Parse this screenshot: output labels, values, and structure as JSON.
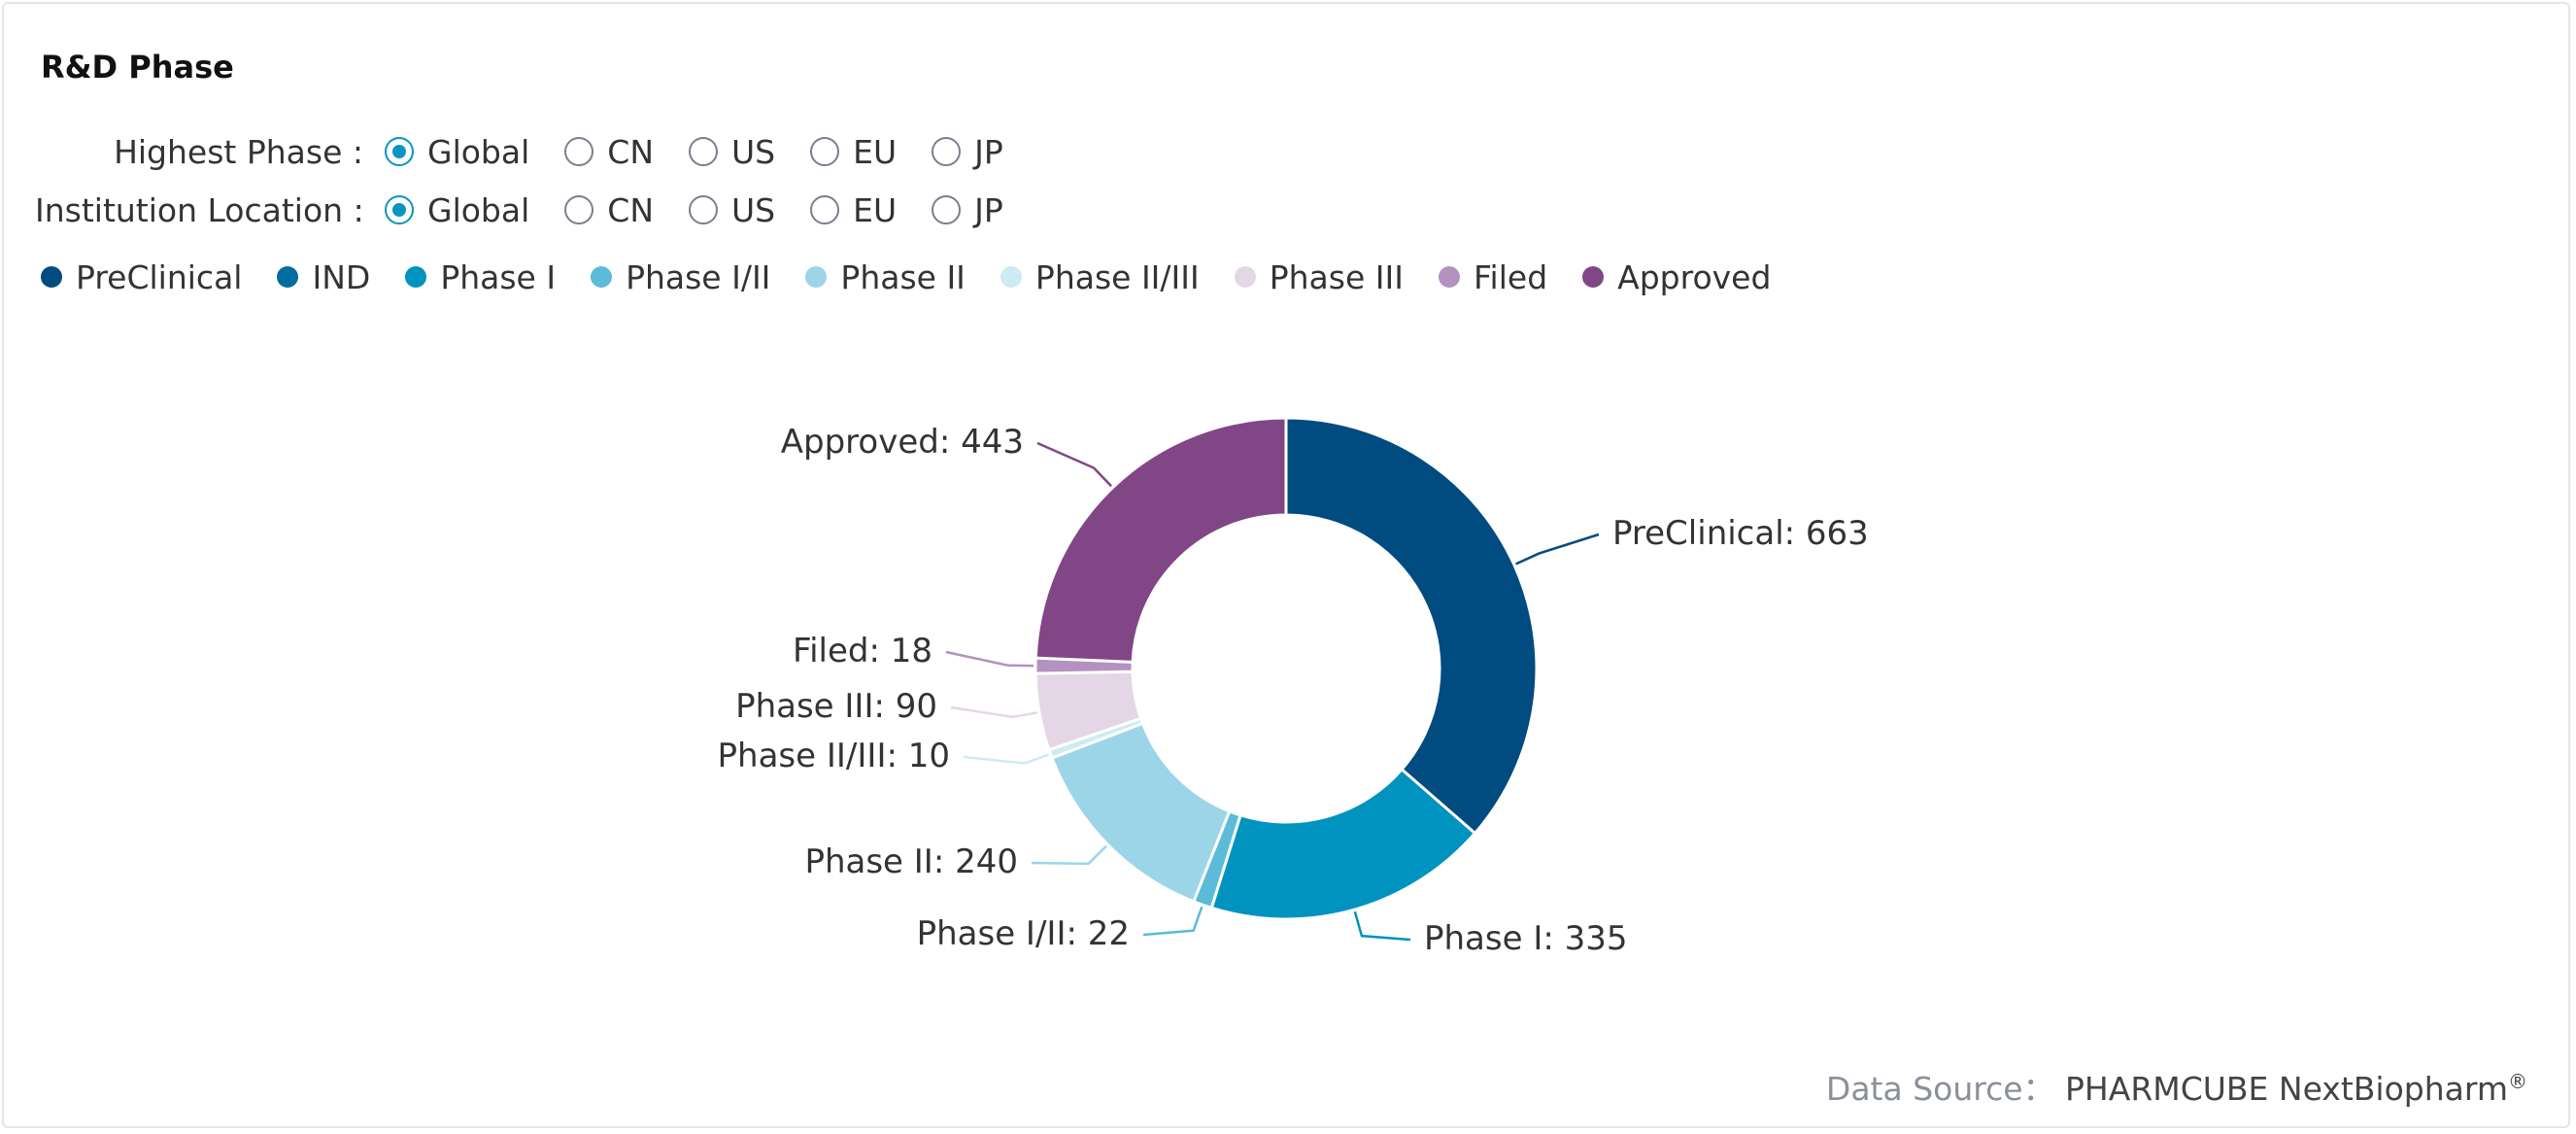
{
  "panel": {
    "title": "R&D Phase"
  },
  "filters": [
    {
      "label": "Highest Phase :",
      "options": [
        "Global",
        "CN",
        "US",
        "EU",
        "JP"
      ],
      "selected": 0
    },
    {
      "label": "Institution Location :",
      "options": [
        "Global",
        "CN",
        "US",
        "EU",
        "JP"
      ],
      "selected": 0
    }
  ],
  "legend": [
    {
      "label": "PreClinical",
      "color": "#004b7f"
    },
    {
      "label": "IND",
      "color": "#006e9f"
    },
    {
      "label": "Phase I",
      "color": "#0093c0"
    },
    {
      "label": "Phase I/II",
      "color": "#5bbbd9"
    },
    {
      "label": "Phase II",
      "color": "#9cd5e7"
    },
    {
      "label": "Phase II/III",
      "color": "#cdebf3"
    },
    {
      "label": "Phase III",
      "color": "#e5d6e7"
    },
    {
      "label": "Filed",
      "color": "#b391c0"
    },
    {
      "label": "Approved",
      "color": "#814686"
    }
  ],
  "chart_data": {
    "type": "pie",
    "subtype": "donut",
    "categories": [
      "PreClinical",
      "IND",
      "Phase I",
      "Phase I/II",
      "Phase II",
      "Phase II/III",
      "Phase III",
      "Filed",
      "Approved"
    ],
    "values": [
      663,
      0,
      335,
      22,
      240,
      10,
      90,
      18,
      443
    ],
    "labels": [
      "PreClinical: 663",
      "",
      "Phase I: 335",
      "Phase I/II: 22",
      "Phase II: 240",
      "Phase II/III: 10",
      "Phase III: 90",
      "Filed: 18",
      "Approved: 443"
    ],
    "colors": [
      "#004b7f",
      "#006e9f",
      "#0093c0",
      "#5bbbd9",
      "#9cd5e7",
      "#cdebf3",
      "#e5d6e7",
      "#b391c0",
      "#814686"
    ],
    "legend_position": "top-left"
  },
  "footer": {
    "source_label": "Data Source：",
    "source_value": "PHARMCUBE NextBiopharm",
    "source_mark": "®"
  }
}
